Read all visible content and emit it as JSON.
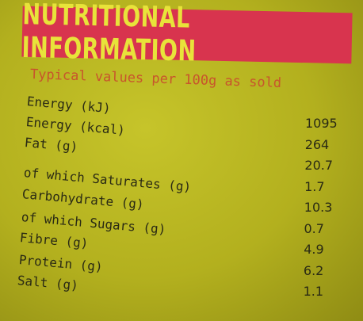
{
  "header": {
    "title": "NUTRITIONAL INFORMATION",
    "subtitle": "Typical values per 100g as sold"
  },
  "table": {
    "rows": [
      [
        "Energy (kJ)",
        "1095"
      ],
      [
        "Energy (kcal)",
        "264"
      ],
      [
        "Fat (g)",
        "20.7"
      ],
      [
        "of which Saturates (g)",
        "1.7"
      ],
      [
        "Carbohydrate (g)",
        "10.3"
      ],
      [
        "of which Sugars (g)",
        "0.7"
      ],
      [
        "Fibre (g)",
        "4.9"
      ],
      [
        "Protein (g)",
        "6.2"
      ],
      [
        "Salt (g)",
        "1.1"
      ]
    ]
  }
}
